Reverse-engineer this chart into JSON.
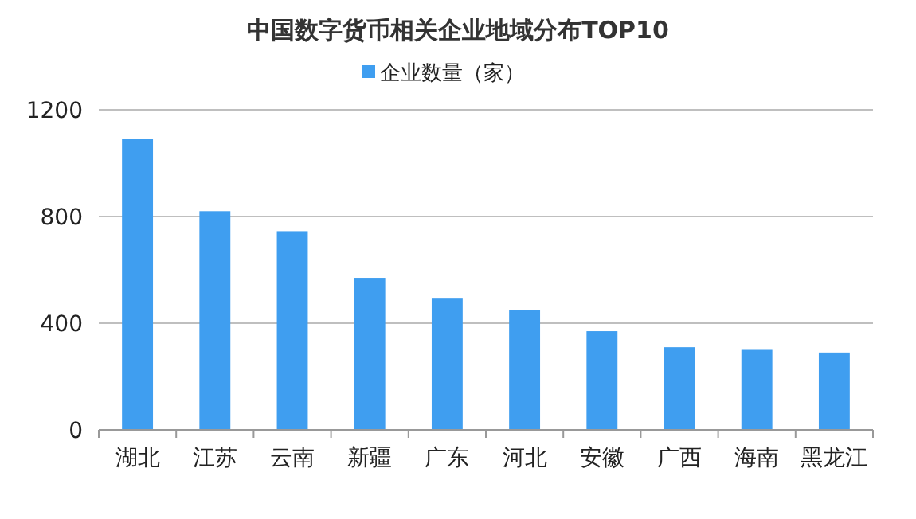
{
  "chart_data": {
    "type": "bar",
    "title": "中国数字货币相关企业地域分布TOP10",
    "categories": [
      "湖北",
      "江苏",
      "云南",
      "新疆",
      "广东",
      "河北",
      "安徽",
      "广西",
      "海南",
      "黑龙江"
    ],
    "series": [
      {
        "name": "企业数量（家）",
        "color": "#3f9ef0",
        "values": [
          1090,
          820,
          745,
          570,
          495,
          450,
          370,
          310,
          300,
          290
        ]
      }
    ],
    "ylim": [
      0,
      1200
    ],
    "yticks": [
      0,
      400,
      800,
      1200
    ],
    "grid": "y",
    "legend": "top"
  }
}
